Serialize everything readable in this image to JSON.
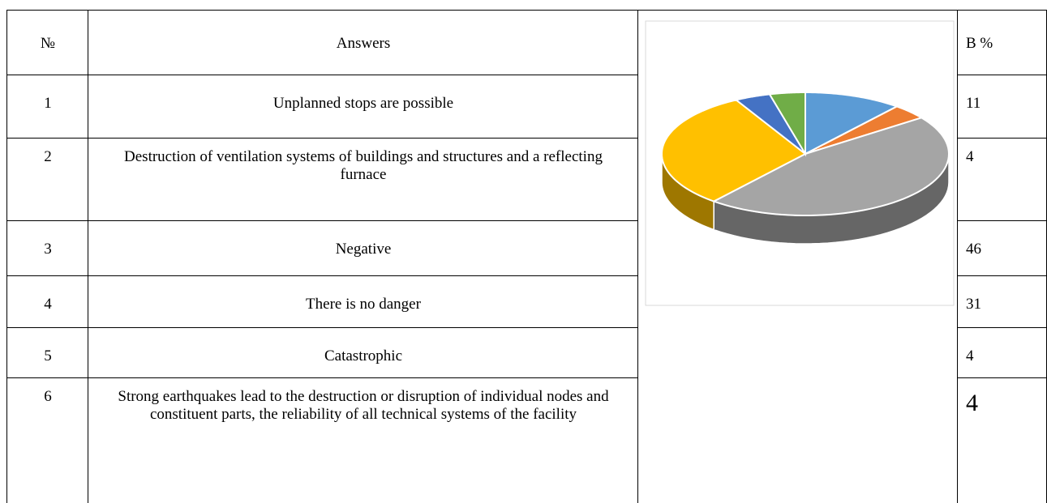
{
  "table": {
    "headers": [
      "№",
      "Answers",
      "В %"
    ],
    "rows": [
      [
        "1",
        "Unplanned stops are possible",
        "11"
      ],
      [
        "2",
        "Destruction of ventilation systems of buildings and structures and a reflecting furnace",
        "4"
      ],
      [
        "3",
        "Negative",
        "46"
      ],
      [
        "4",
        "There is no danger",
        "31"
      ],
      [
        "5",
        "Catastrophic",
        "4"
      ],
      [
        "6",
        "Strong earthquakes lead to the destruction or disruption of individual nodes and constituent parts, the reliability of all technical systems of the facility",
        "4"
      ]
    ]
  },
  "pie": {
    "type": "pie",
    "colors": [
      "#5b9bd5",
      "#ed7d31",
      "#a5a5a5",
      "#ffc000",
      "#4472c4",
      "#70ad47"
    ]
  }
}
